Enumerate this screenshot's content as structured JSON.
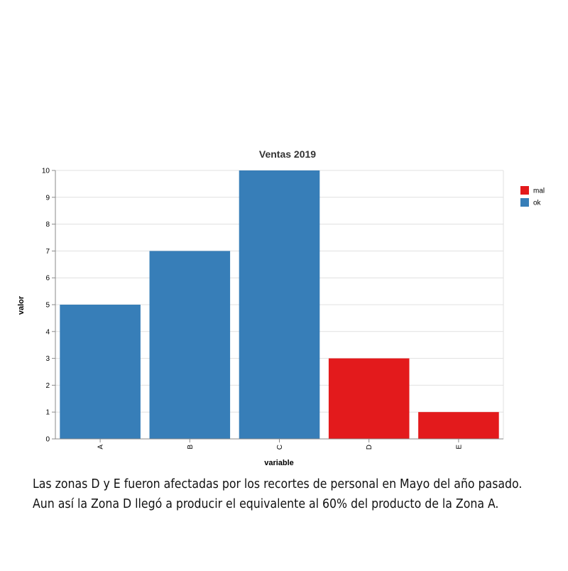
{
  "chart_data": {
    "type": "bar",
    "title": "Ventas 2019",
    "xlabel": "variable",
    "ylabel": "valor",
    "categories": [
      "A",
      "B",
      "C",
      "D",
      "E"
    ],
    "values": [
      5,
      7,
      10,
      3,
      1
    ],
    "color_groups": [
      "ok",
      "ok",
      "ok",
      "mal",
      "mal"
    ],
    "ylim": [
      0,
      10
    ],
    "yticks": [
      0,
      1,
      2,
      3,
      4,
      5,
      6,
      7,
      8,
      9,
      10
    ],
    "grid": true,
    "legend": {
      "placement": "top-right",
      "entries": [
        {
          "label": "mal",
          "color": "#e31a1c"
        },
        {
          "label": "ok",
          "color": "#377eb8"
        }
      ]
    }
  },
  "caption": {
    "line1": "Las zonas D y E fueron afectadas por los recortes de personal en Mayo del año pasado.",
    "line2": "Aun así la Zona D llegó a producir el equivalente al 60% del producto de la Zona A."
  }
}
